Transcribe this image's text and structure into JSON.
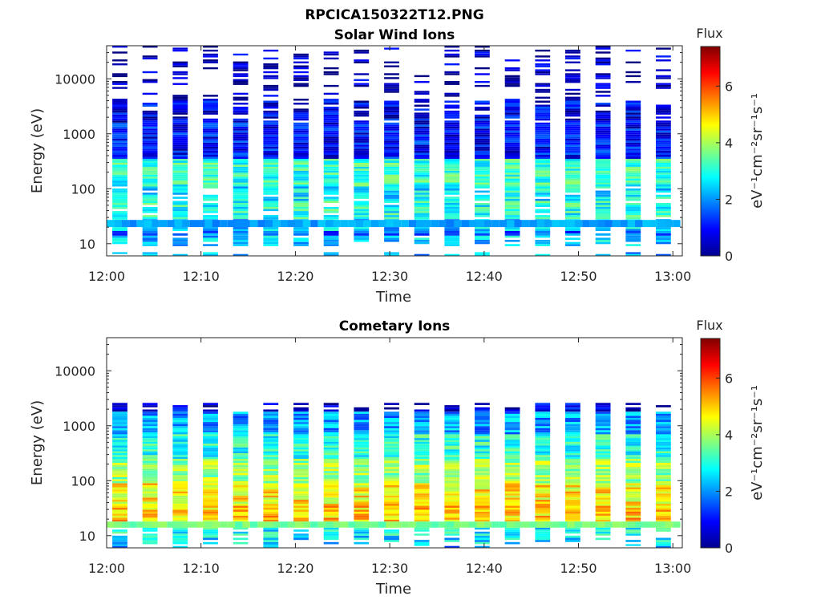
{
  "figure": {
    "title": "RPCICA150322T12.PNG"
  },
  "chart_data": [
    {
      "type": "heatmap",
      "title": "Solar Wind Ions",
      "xlabel": "Time",
      "ylabel": "Energy (eV)",
      "x_ticks": [
        "12:00",
        "12:10",
        "12:20",
        "12:30",
        "12:40",
        "12:50",
        "13:00"
      ],
      "x_range_minutes": [
        0,
        61
      ],
      "y_scale": "log",
      "y_ticks": [
        {
          "value": 10,
          "label": "10"
        },
        {
          "value": 100,
          "label": "100"
        },
        {
          "value": 1000,
          "label": "1000"
        },
        {
          "value": 10000,
          "label": "10000"
        }
      ],
      "y_range": [
        6,
        40000
      ],
      "colorbar": {
        "title": "Flux",
        "label": "eV⁻¹cm⁻²sr⁻¹s⁻¹",
        "range": [
          0,
          7.4
        ],
        "ticks": [
          0,
          2,
          4,
          6
        ],
        "colormap": "jet"
      },
      "scans": {
        "count": 19,
        "period_minutes": 3.2,
        "width_minutes": 1.6,
        "offset_minutes": 0.6,
        "bands": [
          {
            "emin": 6,
            "emax": 7,
            "value": 2.2,
            "fill": 0.5
          },
          {
            "emin": 9,
            "emax": 14,
            "value": 2.4,
            "fill": 0.8
          },
          {
            "emin": 14,
            "emax": 17,
            "value": 1.6,
            "fill": 0.9
          },
          {
            "emin": 17,
            "emax": 28,
            "value": 2.4,
            "fill": 1.0
          },
          {
            "emin": 28,
            "emax": 60,
            "value": 3.0,
            "fill": 0.9
          },
          {
            "emin": 60,
            "emax": 110,
            "value": 2.7,
            "fill": 0.9
          },
          {
            "emin": 110,
            "emax": 350,
            "value": 3.1,
            "fill": 1.0
          },
          {
            "emin": 350,
            "emax": 1600,
            "value": 1.0,
            "fill": 1.0
          },
          {
            "emin": 1600,
            "emax": 4000,
            "value": 0.8,
            "fill": 0.8
          },
          {
            "emin": 4000,
            "emax": 40000,
            "value": 0.4,
            "fill": 0.35
          }
        ]
      },
      "persistent_band": {
        "emin": 20,
        "emax": 27,
        "value": 2.1
      }
    },
    {
      "type": "heatmap",
      "title": "Cometary Ions",
      "xlabel": "Time",
      "ylabel": "Energy (eV)",
      "x_ticks": [
        "12:00",
        "12:10",
        "12:20",
        "12:30",
        "12:40",
        "12:50",
        "13:00"
      ],
      "x_range_minutes": [
        0,
        61
      ],
      "y_scale": "log",
      "y_ticks": [
        {
          "value": 10,
          "label": "10"
        },
        {
          "value": 100,
          "label": "100"
        },
        {
          "value": 1000,
          "label": "1000"
        },
        {
          "value": 10000,
          "label": "10000"
        }
      ],
      "y_range": [
        6,
        40000
      ],
      "colorbar": {
        "title": "Flux",
        "label": "eV⁻¹cm⁻²sr⁻¹s⁻¹",
        "range": [
          0,
          7.4
        ],
        "ticks": [
          0,
          2,
          4,
          6
        ],
        "colormap": "jet"
      },
      "scans": {
        "count": 19,
        "period_minutes": 3.2,
        "width_minutes": 1.6,
        "offset_minutes": 0.6,
        "bands": [
          {
            "emin": 6,
            "emax": 7,
            "value": 2.0,
            "fill": 0.2
          },
          {
            "emin": 7,
            "emax": 10,
            "value": 2.6,
            "fill": 0.7
          },
          {
            "emin": 10,
            "emax": 14,
            "value": 2.8,
            "fill": 0.9
          },
          {
            "emin": 14,
            "emax": 18,
            "value": 3.8,
            "fill": 1.0
          },
          {
            "emin": 18,
            "emax": 35,
            "value": 5.0,
            "fill": 1.0
          },
          {
            "emin": 35,
            "emax": 90,
            "value": 4.7,
            "fill": 1.0
          },
          {
            "emin": 90,
            "emax": 250,
            "value": 3.9,
            "fill": 1.0
          },
          {
            "emin": 250,
            "emax": 700,
            "value": 3.0,
            "fill": 1.0
          },
          {
            "emin": 700,
            "emax": 1800,
            "value": 2.1,
            "fill": 1.0
          },
          {
            "emin": 1800,
            "emax": 2600,
            "value": 0.7,
            "fill": 0.7
          }
        ]
      },
      "persistent_band": {
        "emin": 14,
        "emax": 18,
        "value": 3.6
      }
    }
  ]
}
